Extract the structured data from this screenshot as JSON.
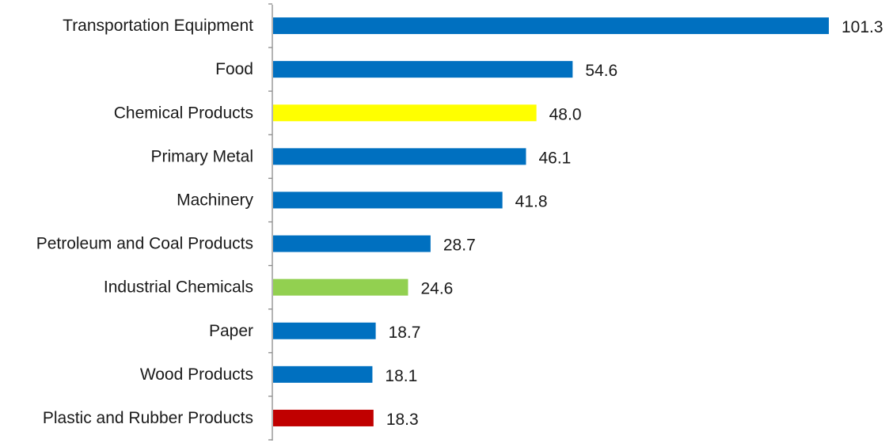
{
  "chart_data": {
    "type": "bar",
    "orientation": "horizontal",
    "title": "",
    "xlabel": "",
    "ylabel": "",
    "grid": false,
    "legend": "none",
    "xlim": [
      0,
      101.3
    ],
    "bars": [
      {
        "category": "Transportation Equipment",
        "value": 101.3,
        "label": "101.3",
        "color": "#0070c0"
      },
      {
        "category": "Food",
        "value": 54.6,
        "label": "54.6",
        "color": "#0070c0"
      },
      {
        "category": "Chemical Products",
        "value": 48.0,
        "label": "48.0",
        "color": "#ffff00"
      },
      {
        "category": "Primary Metal",
        "value": 46.1,
        "label": "46.1",
        "color": "#0070c0"
      },
      {
        "category": "Machinery",
        "value": 41.8,
        "label": "41.8",
        "color": "#0070c0"
      },
      {
        "category": "Petroleum and Coal Products",
        "value": 28.7,
        "label": "28.7",
        "color": "#0070c0"
      },
      {
        "category": "Industrial Chemicals",
        "value": 24.6,
        "label": "24.6",
        "color": "#92d050"
      },
      {
        "category": "Paper",
        "value": 18.7,
        "label": "18.7",
        "color": "#0070c0"
      },
      {
        "category": "Wood Products",
        "value": 18.1,
        "label": "18.1",
        "color": "#0070c0"
      },
      {
        "category": "Plastic and Rubber Products",
        "value": 18.3,
        "label": "18.3",
        "color": "#c00000"
      }
    ]
  }
}
